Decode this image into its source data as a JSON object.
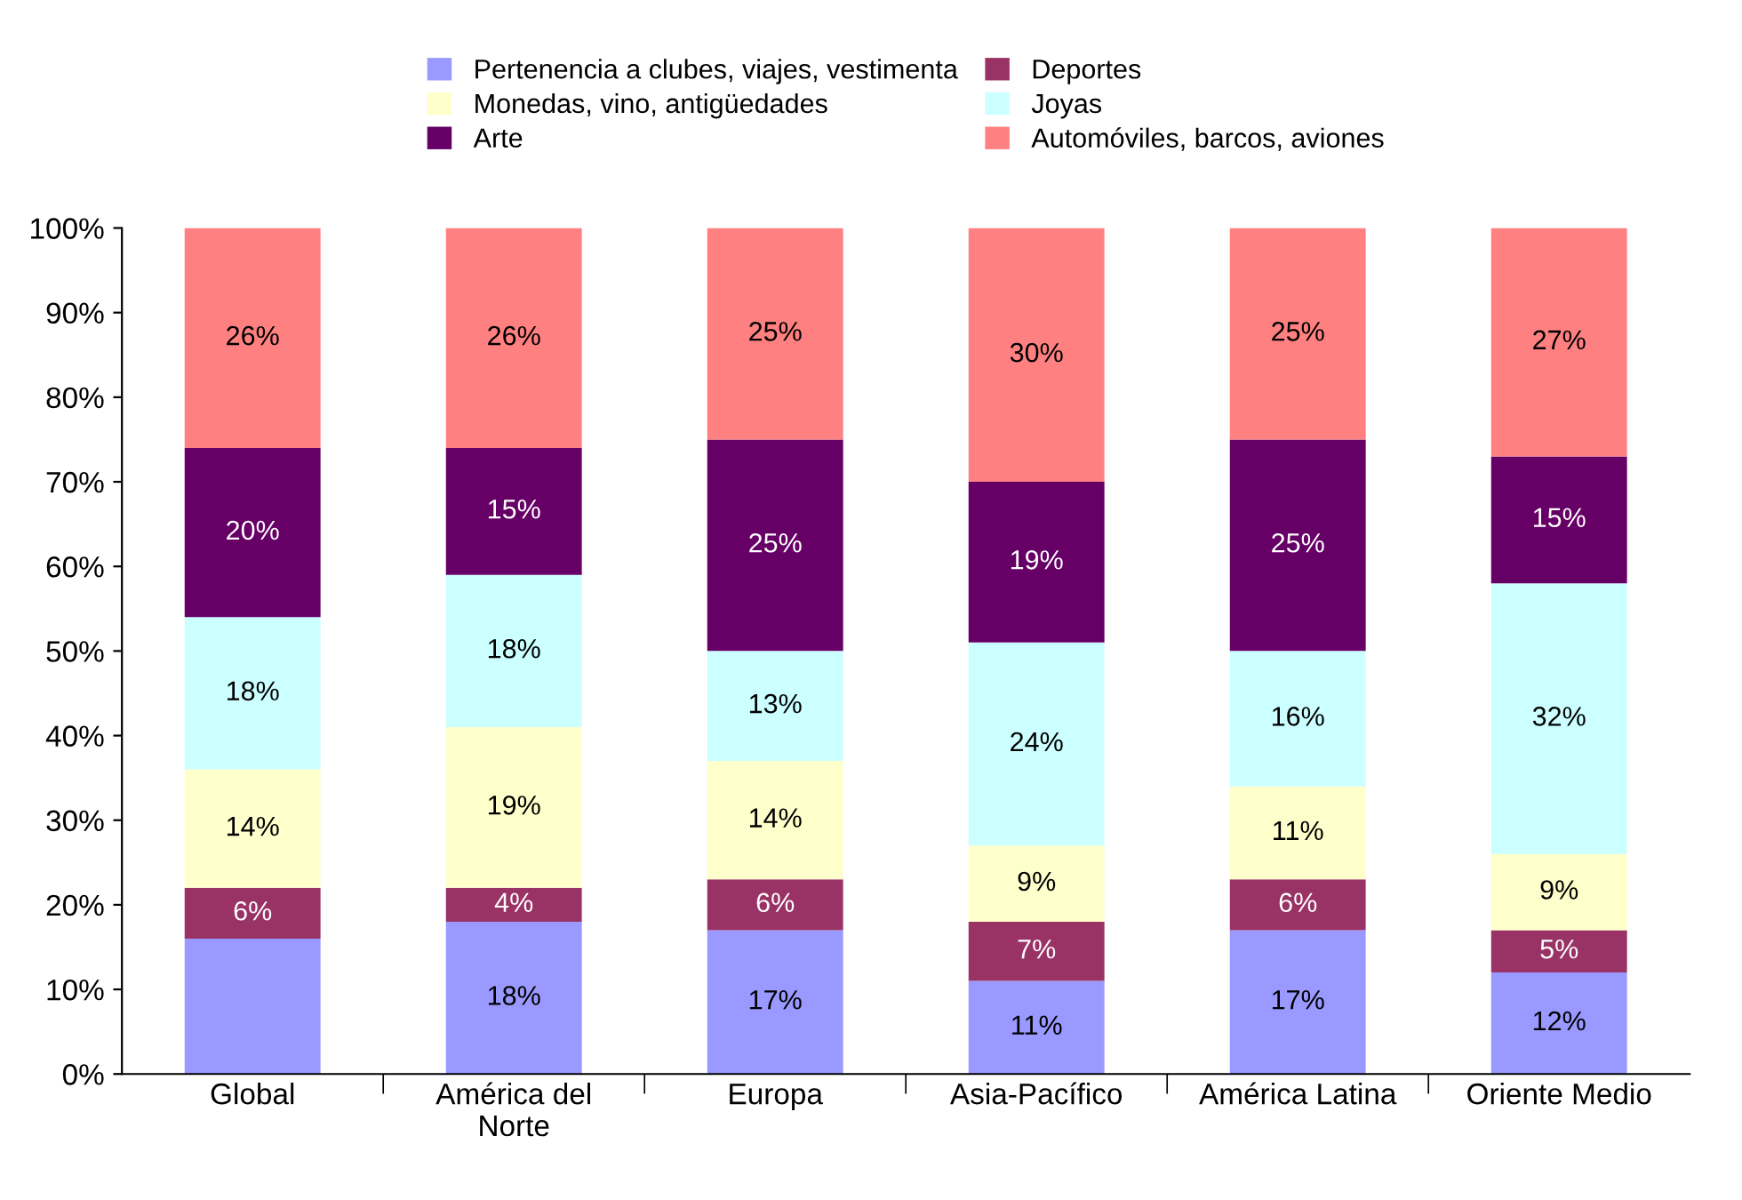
{
  "chart_data": {
    "type": "bar",
    "stacked": true,
    "legend": "top",
    "grid": false,
    "categories": [
      "Global",
      "América del\nNorte",
      "Europa",
      "Asia-Pacífico",
      "América Latina",
      "Oriente Medio"
    ],
    "series": [
      {
        "name": "Pertenencia a clubes, viajes, vestimenta",
        "color": "#9999ff",
        "values": [
          16,
          18,
          17,
          11,
          17,
          12
        ],
        "value_labels": [
          null,
          "18%",
          "17%",
          "11%",
          "17%",
          "12%"
        ]
      },
      {
        "name": "Deportes",
        "color": "#993366",
        "values": [
          6,
          4,
          6,
          7,
          6,
          5
        ],
        "value_labels": [
          "6%",
          "4%",
          "6%",
          "7%",
          "6%",
          "5%"
        ]
      },
      {
        "name": "Monedas, vino, antigüedades",
        "color": "#ffffcc",
        "values": [
          14,
          19,
          14,
          9,
          11,
          9
        ],
        "value_labels": [
          "14%",
          "19%",
          "14%",
          "9%",
          "11%",
          "9%"
        ]
      },
      {
        "name": "Joyas",
        "color": "#ccffff",
        "values": [
          18,
          18,
          13,
          24,
          16,
          32
        ],
        "value_labels": [
          "18%",
          "18%",
          "13%",
          "24%",
          "16%",
          "32%"
        ]
      },
      {
        "name": "Arte",
        "color": "#660066",
        "values": [
          20,
          15,
          25,
          19,
          25,
          15
        ],
        "value_labels": [
          "20%",
          "15%",
          "25%",
          "19%",
          "25%",
          "15%"
        ]
      },
      {
        "name": "Automóviles, barcos, aviones",
        "color": "#ff8080",
        "values": [
          26,
          26,
          25,
          30,
          25,
          27
        ],
        "value_labels": [
          "26%",
          "26%",
          "25%",
          "30%",
          "25%",
          "27%"
        ]
      }
    ],
    "ylim": [
      0,
      100
    ],
    "yticks": [
      {
        "value": 0,
        "label": "0%"
      },
      {
        "value": 10,
        "label": "10%"
      },
      {
        "value": 20,
        "label": "20%"
      },
      {
        "value": 30,
        "label": "30%"
      },
      {
        "value": 40,
        "label": "40%"
      },
      {
        "value": 50,
        "label": "50%"
      },
      {
        "value": 60,
        "label": "60%"
      },
      {
        "value": 70,
        "label": "70%"
      },
      {
        "value": 80,
        "label": "80%"
      },
      {
        "value": 90,
        "label": "90%"
      },
      {
        "value": 100,
        "label": "100%"
      }
    ]
  }
}
